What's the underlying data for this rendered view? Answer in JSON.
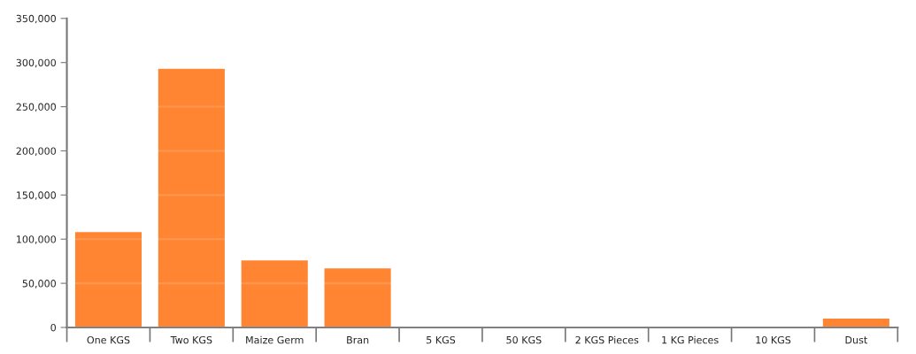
{
  "chart_data": {
    "type": "bar",
    "categories": [
      "One KGS",
      "Two KGS",
      "Maize Germ",
      "Bran",
      "5 KGS",
      "50 KGS",
      "2 KGS Pieces",
      "1 KG Pieces",
      "10 KGS",
      "Dust"
    ],
    "values": [
      108000,
      293000,
      76000,
      67000,
      0,
      0,
      0,
      0,
      0,
      10000
    ],
    "color": "#ff8533",
    "ylim": [
      0,
      350000
    ],
    "yticks": [
      {
        "value": 0,
        "label": "0"
      },
      {
        "value": 50000,
        "label": "50,000"
      },
      {
        "value": 100000,
        "label": "100,000"
      },
      {
        "value": 150000,
        "label": "150,000"
      },
      {
        "value": 200000,
        "label": "200,000"
      },
      {
        "value": 250000,
        "label": "250,000"
      },
      {
        "value": 300000,
        "label": "300,000"
      },
      {
        "value": 350000,
        "label": "350,000"
      }
    ],
    "grid": "y"
  }
}
